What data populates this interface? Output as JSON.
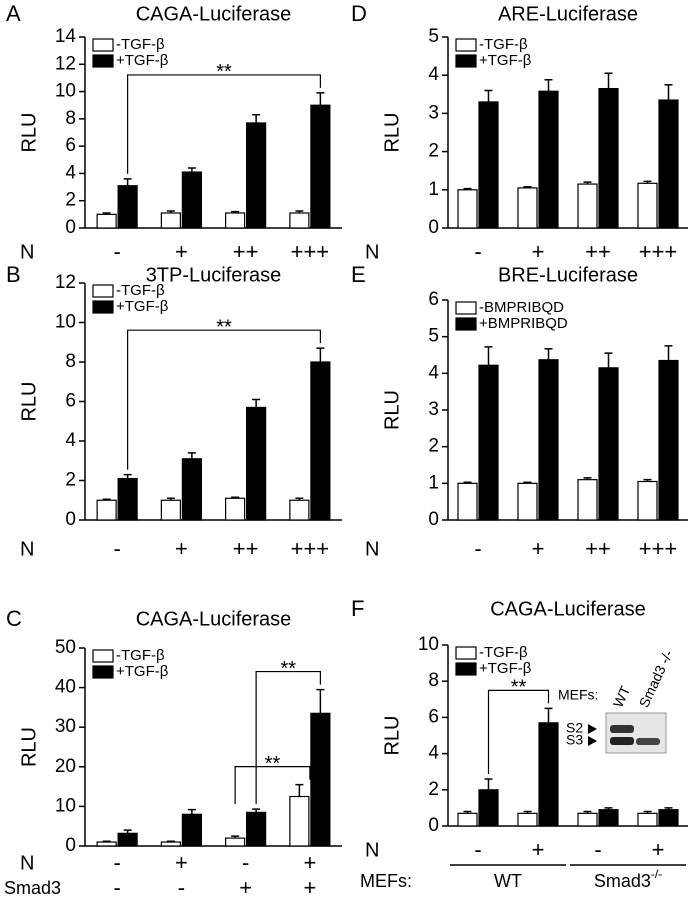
{
  "chart_data": [
    {
      "type": "bar",
      "panel": "A",
      "title": "CAGA-Luciferase",
      "ylabel": "RLU",
      "xlabel": "N",
      "categories": [
        "-",
        "+",
        "++",
        "+++"
      ],
      "series": [
        {
          "name": "-TGF-β",
          "color": "#ffffff",
          "values": [
            1.0,
            1.1,
            1.1,
            1.1
          ],
          "errors": [
            0.1,
            0.15,
            0.1,
            0.15
          ]
        },
        {
          "name": "+TGF-β",
          "color": "#000000",
          "values": [
            3.1,
            4.1,
            7.7,
            9.0
          ],
          "errors": [
            0.5,
            0.3,
            0.6,
            0.9
          ]
        }
      ],
      "ylim": [
        0,
        14
      ],
      "yticks": [
        0,
        2,
        4,
        6,
        8,
        10,
        12,
        14
      ],
      "legend": "upper left",
      "annotations": [
        "**"
      ]
    },
    {
      "type": "bar",
      "panel": "B",
      "title": "3TP-Luciferase",
      "ylabel": "RLU",
      "xlabel": "N",
      "categories": [
        "-",
        "+",
        "++",
        "+++"
      ],
      "series": [
        {
          "name": "-TGF-β",
          "color": "#ffffff",
          "values": [
            1.0,
            1.0,
            1.1,
            1.0
          ],
          "errors": [
            0.05,
            0.1,
            0.05,
            0.1
          ]
        },
        {
          "name": "+TGF-β",
          "color": "#000000",
          "values": [
            2.1,
            3.1,
            5.7,
            8.0
          ],
          "errors": [
            0.2,
            0.3,
            0.4,
            0.7
          ]
        }
      ],
      "ylim": [
        0,
        12
      ],
      "yticks": [
        0,
        2,
        4,
        6,
        8,
        10,
        12
      ],
      "legend": "upper left",
      "annotations": [
        "**"
      ]
    },
    {
      "type": "bar",
      "panel": "C",
      "title": "CAGA-Luciferase",
      "ylabel": "RLU",
      "xlabel": "N",
      "categories": [
        "-",
        "+",
        "-",
        "+"
      ],
      "second_row": {
        "label": "Smad3",
        "labels": [
          "-",
          "-",
          "+",
          "+"
        ]
      },
      "series": [
        {
          "name": "-TGF-β",
          "color": "#ffffff",
          "values": [
            1.0,
            1.0,
            2.0,
            12.5
          ],
          "errors": [
            0.2,
            0.2,
            0.5,
            3.0
          ]
        },
        {
          "name": "+TGF-β",
          "color": "#000000",
          "values": [
            3.2,
            8.0,
            8.5,
            33.5
          ],
          "errors": [
            0.8,
            1.2,
            0.8,
            6.0
          ]
        }
      ],
      "ylim": [
        0,
        50
      ],
      "yticks": [
        0,
        10,
        20,
        30,
        40,
        50
      ],
      "legend": "upper left",
      "annotations": [
        "**",
        "**"
      ]
    },
    {
      "type": "bar",
      "panel": "D",
      "title": "ARE-Luciferase",
      "ylabel": "RLU",
      "xlabel": "N",
      "categories": [
        "-",
        "+",
        "++",
        "+++"
      ],
      "series": [
        {
          "name": "-TGF-β",
          "color": "#ffffff",
          "values": [
            1.0,
            1.05,
            1.15,
            1.17
          ],
          "errors": [
            0.03,
            0.03,
            0.05,
            0.05
          ]
        },
        {
          "name": "+TGF-β",
          "color": "#000000",
          "values": [
            3.3,
            3.58,
            3.65,
            3.35
          ],
          "errors": [
            0.3,
            0.3,
            0.4,
            0.4
          ]
        }
      ],
      "ylim": [
        0,
        5
      ],
      "yticks": [
        0,
        1,
        2,
        3,
        4,
        5
      ],
      "legend": "upper left"
    },
    {
      "type": "bar",
      "panel": "E",
      "title": "BRE-Luciferase",
      "ylabel": "RLU",
      "xlabel": "N",
      "categories": [
        "-",
        "+",
        "++",
        "+++"
      ],
      "series": [
        {
          "name": "-BMPRIBQD",
          "color": "#ffffff",
          "values": [
            1.0,
            1.0,
            1.1,
            1.05
          ],
          "errors": [
            0.03,
            0.03,
            0.05,
            0.05
          ]
        },
        {
          "name": "+BMPRIBQD",
          "color": "#000000",
          "values": [
            4.22,
            4.37,
            4.15,
            4.35
          ],
          "errors": [
            0.5,
            0.3,
            0.4,
            0.4
          ]
        }
      ],
      "ylim": [
        0,
        6
      ],
      "yticks": [
        0,
        1,
        2,
        3,
        4,
        5,
        6
      ],
      "legend": "upper left"
    },
    {
      "type": "bar",
      "panel": "F",
      "title": "CAGA-Luciferase",
      "ylabel": "RLU",
      "xlabel": "N",
      "categories": [
        "-",
        "+",
        "-",
        "+"
      ],
      "group_label": "MEFs:",
      "groups": [
        {
          "label": "WT"
        },
        {
          "label": "Smad3",
          "superscript": "-/-"
        }
      ],
      "series": [
        {
          "name": "-TGF-β",
          "color": "#ffffff",
          "values": [
            0.7,
            0.7,
            0.7,
            0.7
          ],
          "errors": [
            0.1,
            0.1,
            0.1,
            0.1
          ]
        },
        {
          "name": "+TGF-β",
          "color": "#000000",
          "values": [
            2.0,
            5.7,
            0.9,
            0.9
          ],
          "errors": [
            0.6,
            0.8,
            0.1,
            0.1
          ]
        }
      ],
      "ylim": [
        0,
        10
      ],
      "yticks": [
        0,
        2,
        4,
        6,
        8,
        10
      ],
      "legend": "upper left",
      "annotations": [
        "**"
      ],
      "inset": {
        "title": "MEFs:",
        "lanes": [
          "WT",
          "Smad3 -/-"
        ],
        "bands": [
          "S2",
          "S3"
        ]
      }
    }
  ]
}
